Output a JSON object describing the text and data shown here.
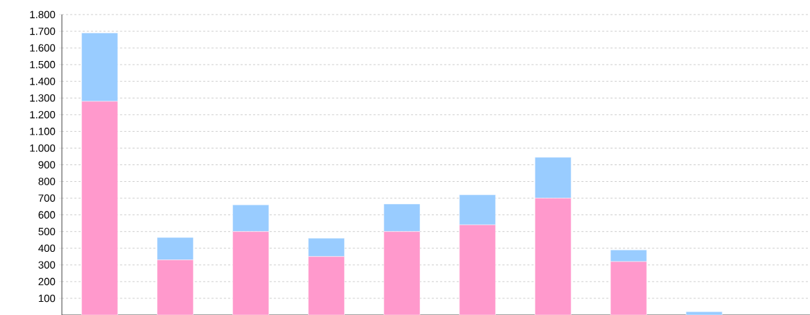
{
  "chart_data": {
    "type": "bar",
    "stacked": true,
    "categories": [
      null,
      null,
      null,
      null,
      null,
      null,
      null,
      null,
      null
    ],
    "series": [
      {
        "color": "#ff99cc",
        "values": [
          1280,
          330,
          500,
          350,
          500,
          540,
          700,
          320,
          0
        ]
      },
      {
        "color": "#99ccff",
        "values": [
          410,
          135,
          160,
          110,
          165,
          180,
          245,
          70,
          20
        ]
      }
    ],
    "ylim": [
      0,
      1800
    ],
    "yticks": [
      100,
      200,
      300,
      400,
      500,
      600,
      700,
      800,
      900,
      {
        "value": 1000,
        "label": "1.000"
      },
      {
        "value": 1100,
        "label": "1.100"
      },
      {
        "value": 1200,
        "label": "1.200"
      },
      {
        "value": 1300,
        "label": "1.300"
      },
      {
        "value": 1400,
        "label": "1.400"
      },
      {
        "value": 1500,
        "label": "1.500"
      },
      {
        "value": 1600,
        "label": "1.600"
      },
      {
        "value": 1700,
        "label": "1.700"
      },
      {
        "value": 1800,
        "label": "1.800"
      }
    ],
    "grid": "y"
  }
}
